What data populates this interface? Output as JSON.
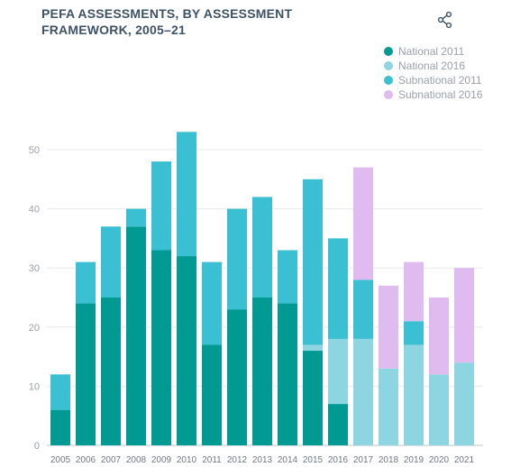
{
  "title": "PEFA ASSESSMENTS, BY ASSESSMENT FRAMEWORK, 2005–21",
  "share_icon": "share-icon",
  "colors": {
    "national_2011": "#009a93",
    "national_2016": "#8dd5e0",
    "subnational_2011": "#3bbfd2",
    "subnational_2016": "#e0bbf0"
  },
  "chart_data": {
    "type": "bar",
    "stacked": true,
    "title": "PEFA ASSESSMENTS, BY ASSESSMENT FRAMEWORK, 2005–21",
    "categories": [
      "2005",
      "2006",
      "2007",
      "2008",
      "2009",
      "2010",
      "2011",
      "2012",
      "2013",
      "2014",
      "2015",
      "2016",
      "2017",
      "2018",
      "2019",
      "2020",
      "2021"
    ],
    "series": [
      {
        "name": "National 2011",
        "color": "#009a93",
        "values": [
          6,
          24,
          25,
          37,
          33,
          32,
          17,
          23,
          25,
          24,
          16,
          7,
          0,
          0,
          0,
          0,
          0
        ]
      },
      {
        "name": "National 2016",
        "color": "#8dd5e0",
        "values": [
          0,
          0,
          0,
          0,
          0,
          0,
          0,
          0,
          0,
          0,
          1,
          11,
          18,
          13,
          17,
          12,
          14
        ]
      },
      {
        "name": "Subnational 2011",
        "color": "#3bbfd2",
        "values": [
          6,
          7,
          12,
          3,
          15,
          21,
          14,
          17,
          17,
          9,
          28,
          17,
          10,
          0,
          4,
          0,
          0
        ]
      },
      {
        "name": "Subnational 2016",
        "color": "#e0bbf0",
        "values": [
          0,
          0,
          0,
          0,
          0,
          0,
          0,
          0,
          0,
          0,
          0,
          0,
          19,
          14,
          10,
          13,
          16
        ]
      }
    ],
    "ylim": [
      0,
      55
    ],
    "yticks": [
      "0",
      "10",
      "20",
      "30",
      "40",
      "50"
    ],
    "grid": true,
    "legend_position": "top-right"
  }
}
